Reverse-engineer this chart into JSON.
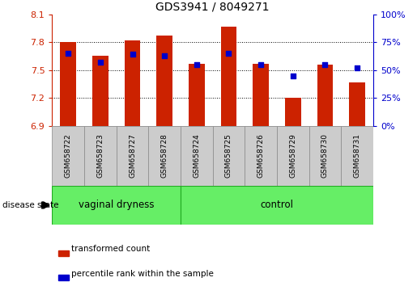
{
  "title": "GDS3941 / 8049271",
  "samples": [
    "GSM658722",
    "GSM658723",
    "GSM658727",
    "GSM658728",
    "GSM658724",
    "GSM658725",
    "GSM658726",
    "GSM658729",
    "GSM658730",
    "GSM658731"
  ],
  "groups": [
    "vaginal dryness",
    "vaginal dryness",
    "vaginal dryness",
    "vaginal dryness",
    "control",
    "control",
    "control",
    "control",
    "control",
    "control"
  ],
  "bar_values": [
    7.8,
    7.65,
    7.82,
    7.87,
    7.565,
    7.97,
    7.565,
    7.2,
    7.555,
    7.37
  ],
  "blue_dot_percentiles": [
    65,
    57,
    64,
    63,
    55,
    65,
    55,
    45,
    55,
    52
  ],
  "bar_bottom": 6.9,
  "ylim_left": [
    6.9,
    8.1
  ],
  "ylim_right": [
    0,
    100
  ],
  "yticks_left": [
    6.9,
    7.2,
    7.5,
    7.8,
    8.1
  ],
  "yticks_right": [
    0,
    25,
    50,
    75,
    100
  ],
  "ytick_labels_right": [
    "0%",
    "25%",
    "50%",
    "75%",
    "100%"
  ],
  "bar_color": "#cc2200",
  "dot_color": "#0000cc",
  "label_bg_color": "#cccccc",
  "group_band_color": "#66ee66",
  "group_band_edge": "#22aa22",
  "left_ax_color": "#cc2200",
  "right_ax_color": "#0000cc",
  "legend_items": [
    "transformed count",
    "percentile rank within the sample"
  ],
  "disease_state_label": "disease state",
  "group_defs": [
    [
      0,
      3,
      "vaginal dryness"
    ],
    [
      4,
      9,
      "control"
    ]
  ]
}
